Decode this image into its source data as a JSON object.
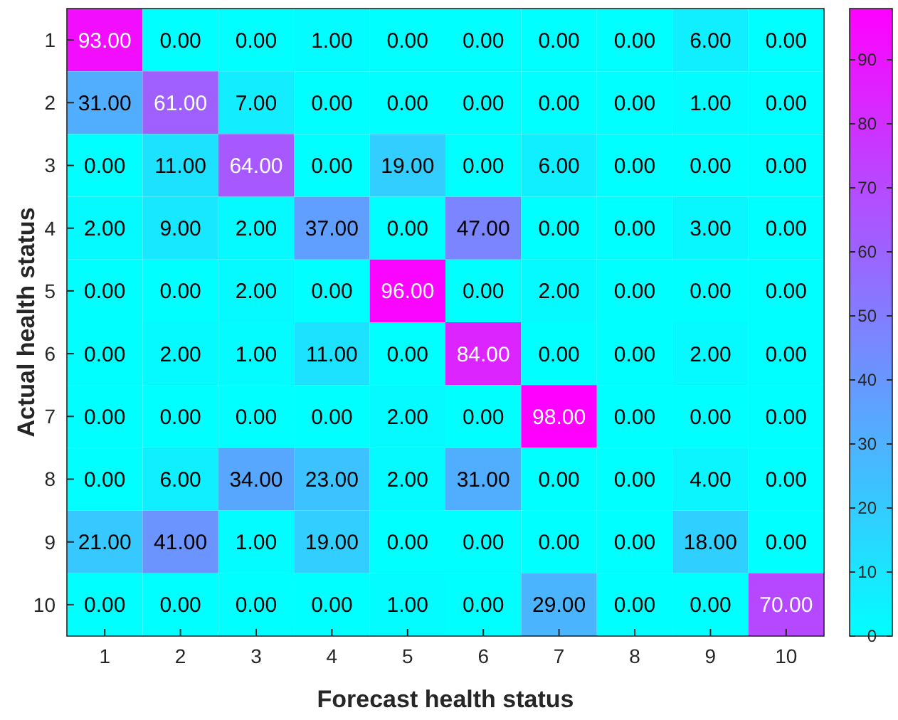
{
  "chart_data": {
    "type": "heatmap",
    "xlabel": "Forecast health status",
    "ylabel": "Actual health status",
    "categories": [
      "1",
      "2",
      "3",
      "4",
      "5",
      "6",
      "7",
      "8",
      "9",
      "10"
    ],
    "y_categories": [
      "1",
      "2",
      "3",
      "4",
      "5",
      "6",
      "7",
      "8",
      "9",
      "10"
    ],
    "cells": [
      [
        93,
        0,
        0,
        1,
        0,
        0,
        0,
        0,
        6,
        0
      ],
      [
        31,
        61,
        7,
        0,
        0,
        0,
        0,
        0,
        1,
        0
      ],
      [
        0,
        11,
        64,
        0,
        19,
        0,
        6,
        0,
        0,
        0
      ],
      [
        2,
        9,
        2,
        37,
        0,
        47,
        0,
        0,
        3,
        0
      ],
      [
        0,
        0,
        2,
        0,
        96,
        0,
        2,
        0,
        0,
        0
      ],
      [
        0,
        2,
        1,
        11,
        0,
        84,
        0,
        0,
        2,
        0
      ],
      [
        0,
        0,
        0,
        0,
        2,
        0,
        98,
        0,
        0,
        0
      ],
      [
        0,
        6,
        34,
        23,
        2,
        31,
        0,
        0,
        4,
        0
      ],
      [
        21,
        41,
        1,
        19,
        0,
        0,
        0,
        0,
        18,
        0
      ],
      [
        0,
        0,
        0,
        0,
        1,
        0,
        29,
        0,
        0,
        70
      ]
    ],
    "cell_labels": [
      [
        "93.00",
        "0.00",
        "0.00",
        "1.00",
        "0.00",
        "0.00",
        "0.00",
        "0.00",
        "6.00",
        "0.00"
      ],
      [
        "31.00",
        "61.00",
        "7.00",
        "0.00",
        "0.00",
        "0.00",
        "0.00",
        "0.00",
        "1.00",
        "0.00"
      ],
      [
        "0.00",
        "11.00",
        "64.00",
        "0.00",
        "19.00",
        "0.00",
        "6.00",
        "0.00",
        "0.00",
        "0.00"
      ],
      [
        "2.00",
        "9.00",
        "2.00",
        "37.00",
        "0.00",
        "47.00",
        "0.00",
        "0.00",
        "3.00",
        "0.00"
      ],
      [
        "0.00",
        "0.00",
        "2.00",
        "0.00",
        "96.00",
        "0.00",
        "2.00",
        "0.00",
        "0.00",
        "0.00"
      ],
      [
        "0.00",
        "2.00",
        "1.00",
        "11.00",
        "0.00",
        "84.00",
        "0.00",
        "0.00",
        "2.00",
        "0.00"
      ],
      [
        "0.00",
        "0.00",
        "0.00",
        "0.00",
        "2.00",
        "0.00",
        "98.00",
        "0.00",
        "0.00",
        "0.00"
      ],
      [
        "0.00",
        "6.00",
        "34.00",
        "23.00",
        "2.00",
        "31.00",
        "0.00",
        "0.00",
        "4.00",
        "0.00"
      ],
      [
        "21.00",
        "41.00",
        "1.00",
        "19.00",
        "0.00",
        "0.00",
        "0.00",
        "0.00",
        "18.00",
        "0.00"
      ],
      [
        "0.00",
        "0.00",
        "0.00",
        "0.00",
        "1.00",
        "0.00",
        "29.00",
        "0.00",
        "0.00",
        "70.00"
      ]
    ],
    "clim": [
      0,
      98
    ],
    "cticks": [
      0,
      10,
      20,
      30,
      40,
      50,
      60,
      70,
      80,
      90
    ]
  }
}
